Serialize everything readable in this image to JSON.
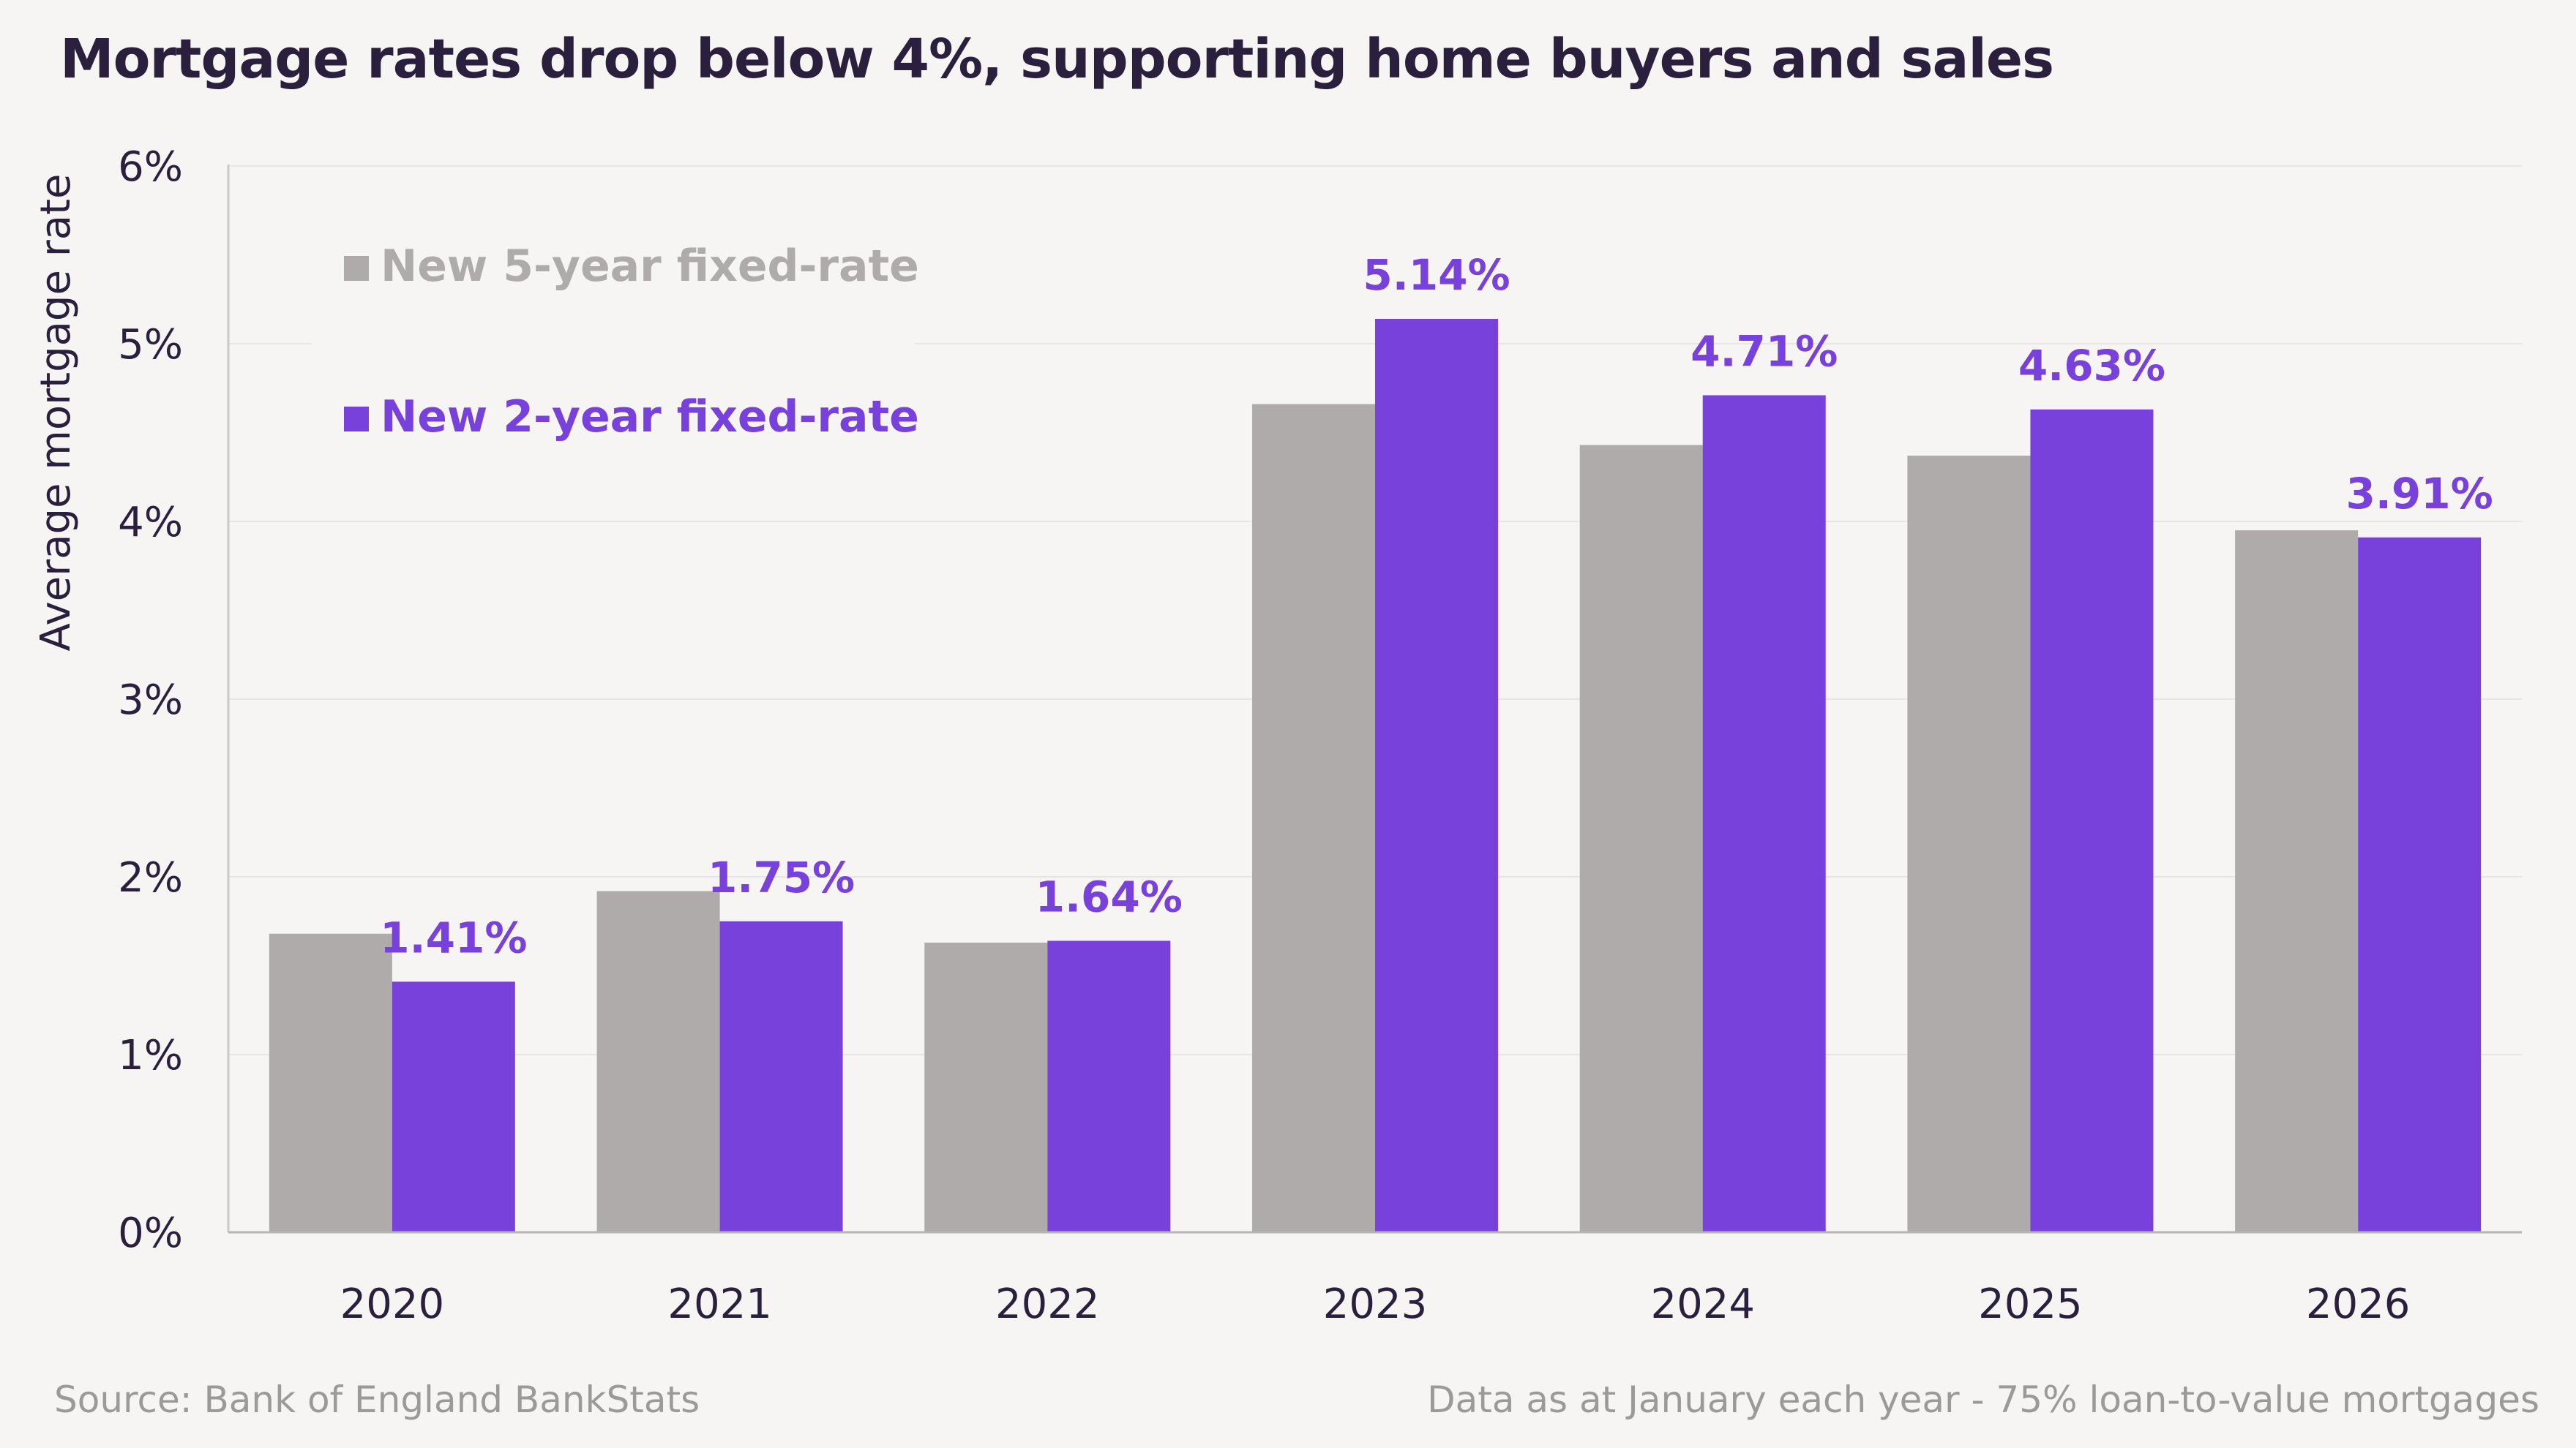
{
  "chart_data": {
    "type": "bar",
    "title": "Mortgage rates drop below 4%, supporting home buyers and sales",
    "ylabel": "Average mortgage rate",
    "xlabel": "",
    "ylim": [
      0,
      6
    ],
    "yticks": [
      "0%",
      "1%",
      "2%",
      "3%",
      "4%",
      "5%",
      "6%"
    ],
    "categories": [
      "2020",
      "2021",
      "2022",
      "2023",
      "2024",
      "2025",
      "2026"
    ],
    "series": [
      {
        "name": "New 5-year fixed-rate",
        "color": "#aeabaa",
        "values": [
          1.68,
          1.92,
          1.63,
          4.66,
          4.43,
          4.37,
          3.95
        ]
      },
      {
        "name": "New 2-year fixed-rate",
        "color": "#7841dc",
        "values": [
          1.41,
          1.75,
          1.64,
          5.14,
          4.71,
          4.63,
          3.91
        ]
      }
    ],
    "data_labels": [
      "1.41%",
      "1.75%",
      "1.64%",
      "5.14%",
      "4.71%",
      "4.63%",
      "3.91%"
    ],
    "legend": "top-left"
  },
  "footer": {
    "source": "Source: Bank of England BankStats",
    "note": "Data as at January each year - 75% loan-to-value mortgages"
  }
}
